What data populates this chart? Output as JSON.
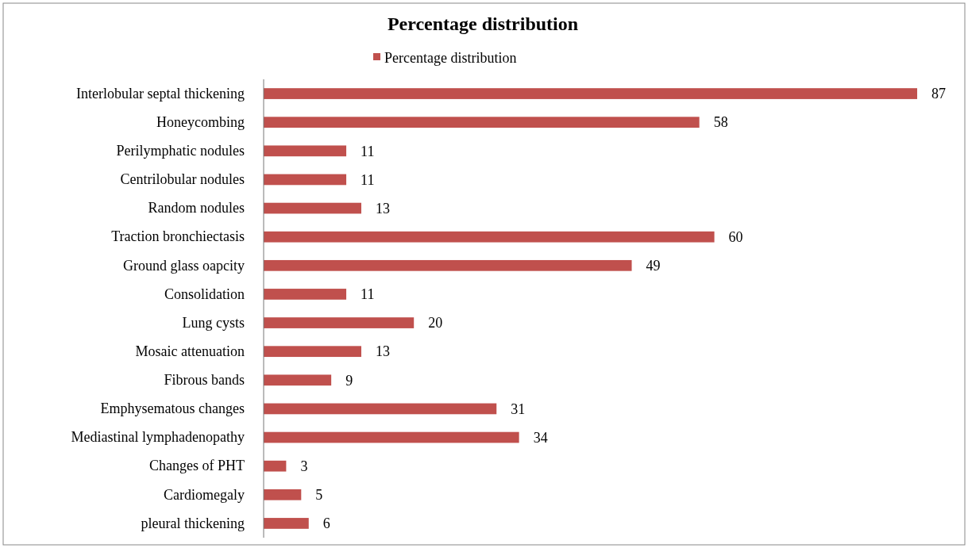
{
  "chart_data": {
    "type": "bar",
    "orientation": "horizontal",
    "title": "Percentage distribution",
    "categories": [
      "Interlobular septal thickening",
      "Honeycombing",
      "Perilymphatic nodules",
      "Centrilobular nodules",
      "Random nodules",
      "Traction bronchiectasis",
      "Ground glass oapcity",
      "Consolidation",
      "Lung cysts",
      "Mosaic attenuation",
      "Fibrous bands",
      "Emphysematous changes",
      "Mediastinal lymphadenopathy",
      "Changes of PHT",
      "Cardiomegaly",
      "pleural thickening"
    ],
    "series": [
      {
        "name": "Percentage distribution",
        "color": "#c0504d",
        "values": [
          87,
          58,
          11,
          11,
          13,
          60,
          49,
          11,
          20,
          13,
          9,
          31,
          34,
          3,
          5,
          6
        ]
      }
    ],
    "data_labels": true,
    "legend": "top",
    "grid": false
  }
}
